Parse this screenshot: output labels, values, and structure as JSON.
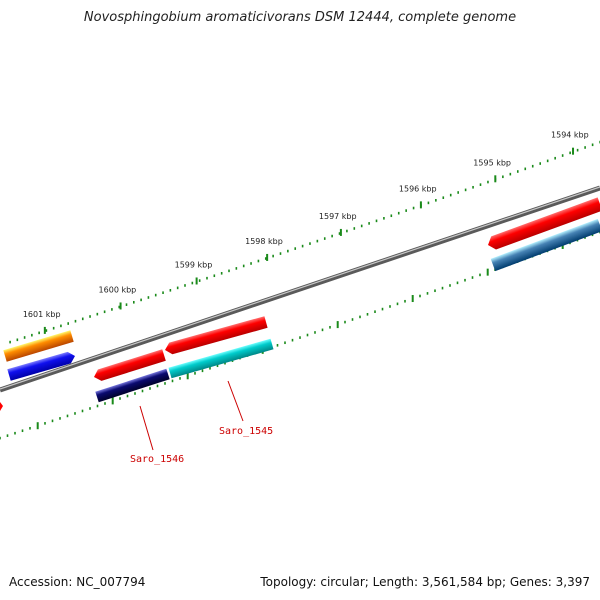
{
  "title": "Novosphingobium aromaticivorans DSM 12444, complete genome",
  "footer": {
    "accession": "Accession: NC_007794",
    "summary": "Topology: circular; Length: 3,561,584 bp; Genes: 3,397"
  },
  "scale_labels": [
    "1594 kbp",
    "1595 kbp",
    "1596 kbp",
    "1597 kbp",
    "1598 kbp",
    "1599 kbp",
    "1600 kbp",
    "1601 kbp"
  ],
  "genes": [
    {
      "name": "Saro_1545",
      "label": "Saro_1545",
      "color": "#ff0000",
      "strand": "forward"
    },
    {
      "name": "Saro_1545-cds",
      "label": "",
      "color": "#00cccc",
      "strand": "forward"
    },
    {
      "name": "Saro_1546",
      "label": "Saro_1546",
      "color": "#ff0000",
      "strand": "reverse"
    },
    {
      "name": "Saro_1546-cds",
      "label": "",
      "color": "#0a0a70",
      "strand": "reverse"
    },
    {
      "name": "left-gene-orange",
      "label": "",
      "color": "#ff8c00",
      "strand": "forward"
    },
    {
      "name": "left-gene-blue",
      "label": "",
      "color": "#1010ee",
      "strand": "forward"
    },
    {
      "name": "right-gene-red",
      "label": "",
      "color": "#ff0000",
      "strand": "reverse"
    },
    {
      "name": "right-gene-steel",
      "label": "",
      "color": "#4682b4",
      "strand": "forward"
    }
  ],
  "colors": {
    "backbone": "#808080",
    "scale_ticks": "#1a8a1a",
    "label_text": "#cc0000"
  }
}
